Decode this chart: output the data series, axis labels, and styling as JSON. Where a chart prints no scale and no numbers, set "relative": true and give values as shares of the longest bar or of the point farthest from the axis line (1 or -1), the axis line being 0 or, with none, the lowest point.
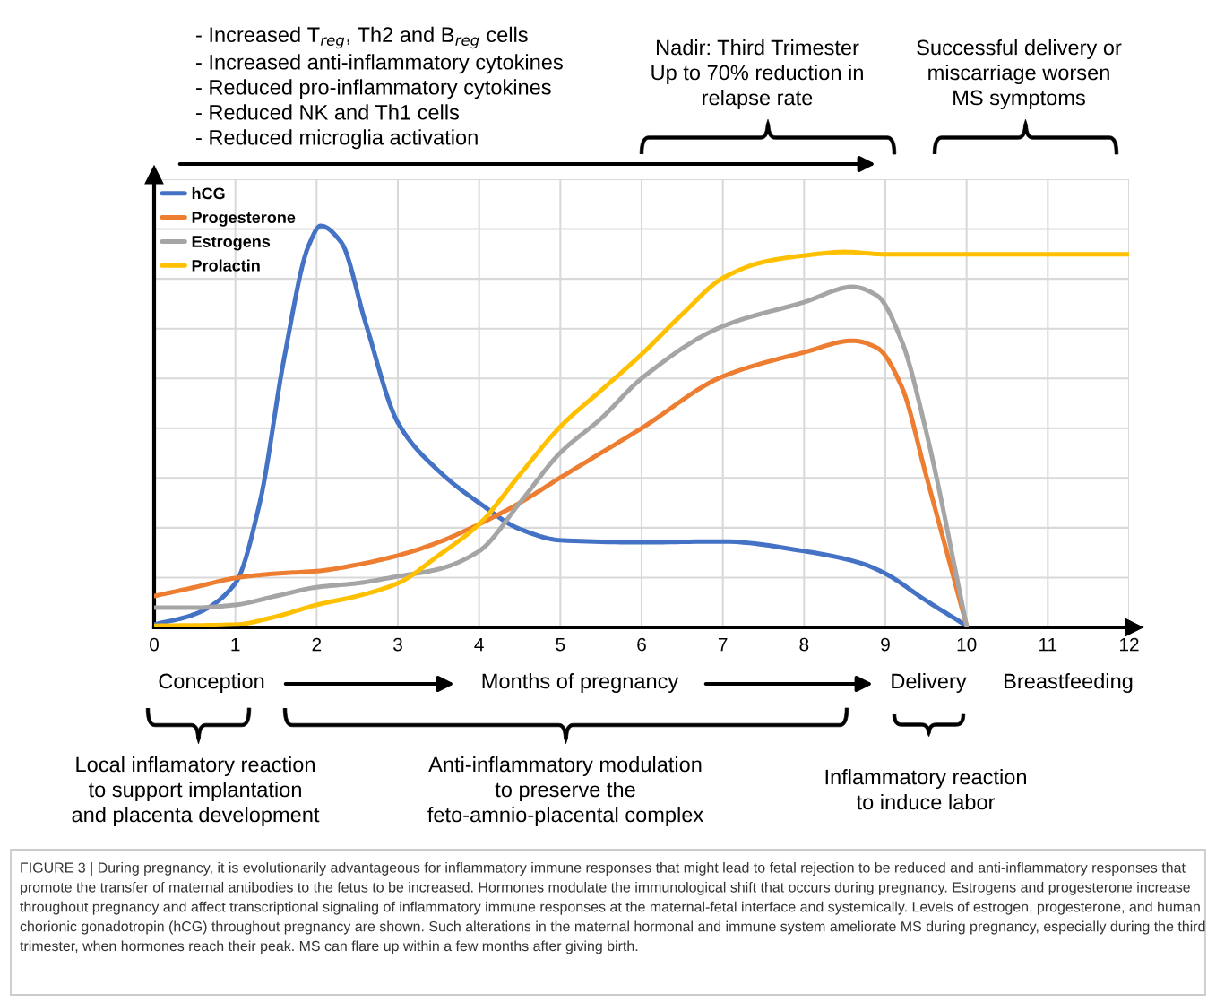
{
  "chart_data": {
    "type": "line",
    "relative": true,
    "series": [
      {
        "name": "hCG",
        "color": "#4472c4",
        "x": [
          0,
          0.5,
          1,
          1.3,
          1.6,
          1.9,
          2.05,
          2.3,
          2.6,
          3,
          3.5,
          4,
          4.5,
          5,
          6,
          7,
          8,
          8.7,
          9,
          9.5,
          10
        ],
        "values": [
          0.007,
          0.033,
          0.11,
          0.31,
          0.67,
          0.95,
          1,
          0.96,
          0.76,
          0.51,
          0.39,
          0.31,
          0.245,
          0.217,
          0.212,
          0.214,
          0.19,
          0.16,
          0.134,
          0.067,
          0.004
        ]
      },
      {
        "name": "Progesterone",
        "color": "#ed7d31",
        "x": [
          0,
          0.5,
          1,
          1.5,
          2,
          2.5,
          3,
          3.5,
          4,
          4.5,
          5,
          6,
          7,
          8,
          8.6,
          8.9,
          9.2,
          9.5,
          10
        ],
        "values": [
          0.078,
          0.1,
          0.123,
          0.134,
          0.14,
          0.156,
          0.179,
          0.212,
          0.257,
          0.31,
          0.373,
          0.496,
          0.625,
          0.685,
          0.714,
          0.696,
          0.6,
          0.38,
          0.004
        ]
      },
      {
        "name": "Estrogens",
        "color": "#a5a5a5",
        "x": [
          0,
          0.5,
          1,
          1.5,
          2,
          2.5,
          3,
          3.5,
          4,
          4.5,
          5,
          5.5,
          6,
          7,
          8,
          8.6,
          8.9,
          9.2,
          9.5,
          10
        ],
        "values": [
          0.049,
          0.049,
          0.056,
          0.078,
          0.1,
          0.11,
          0.127,
          0.145,
          0.19,
          0.31,
          0.435,
          0.52,
          0.62,
          0.75,
          0.81,
          0.848,
          0.826,
          0.714,
          0.49,
          0.004
        ]
      },
      {
        "name": "Prolactin",
        "color": "#ffc000",
        "x": [
          0,
          1,
          1.5,
          2,
          2.5,
          3,
          3.5,
          4,
          4.5,
          5,
          5.5,
          6,
          6.5,
          7,
          7.5,
          8,
          8.5,
          9,
          10,
          12
        ],
        "values": [
          0.004,
          0.007,
          0.027,
          0.056,
          0.078,
          0.11,
          0.179,
          0.257,
          0.38,
          0.5,
          0.59,
          0.68,
          0.78,
          0.87,
          0.91,
          0.926,
          0.935,
          0.929,
          0.929,
          0.929
        ]
      }
    ],
    "xlim": [
      0,
      12
    ],
    "xticks": [
      0,
      1,
      2,
      3,
      4,
      5,
      6,
      7,
      8,
      9,
      10,
      11,
      12
    ],
    "tick_labels": "x",
    "grid": true,
    "legend": "top left",
    "marker": "none",
    "line_style": "solid",
    "annotations": [
      "- Increased T$_{reg}$, Th2 and B$_{reg}$ cells\n- Increased anti-inflammatory cytokines\n- Reduced pro-inflammatory cytokines\n- Reduced NK and Th1 cells\n- Reduced microglia activation",
      "Nadir: Third Trimester\nUp to 70% reduction in\nrelapse rate",
      "Successful delivery or\nmiscarriage worsen\nMS symptoms",
      "Conception",
      "Months of pregnancy",
      "Delivery",
      "Breastfeeding",
      "Local inflamatory reaction\nto support implantation\nand placenta development",
      "Anti-inflammatory modulation\nto preserve the\nfeto-amnio-placental complex",
      "Inflammatory reaction\nto induce labor",
      "FIGURE 3 | During pregnancy, it is evolutionarily advantageous for inflammatory immune responses that might lead to fetal rejection to be reduced and anti-inflammatory responses that promote the transfer of maternal antibodies to the fetus to be increased. Hormones modulate the immunological shift that occurs during pregnancy. Estrogens and progesterone increase throughout pregnancy and affect transcriptional signaling of inflammatory immune responses at the maternal-fetal interface and systemically. Levels of estrogen, progesterone, and human chorionic gonadotropin (hCG) throughout pregnancy are shown. Such alterations in the maternal hormonal and immune system ameliorate MS during pregnancy, especially during the third trimester, when hormones reach their peak. MS can flare up within a few months after giving birth."
    ]
  }
}
